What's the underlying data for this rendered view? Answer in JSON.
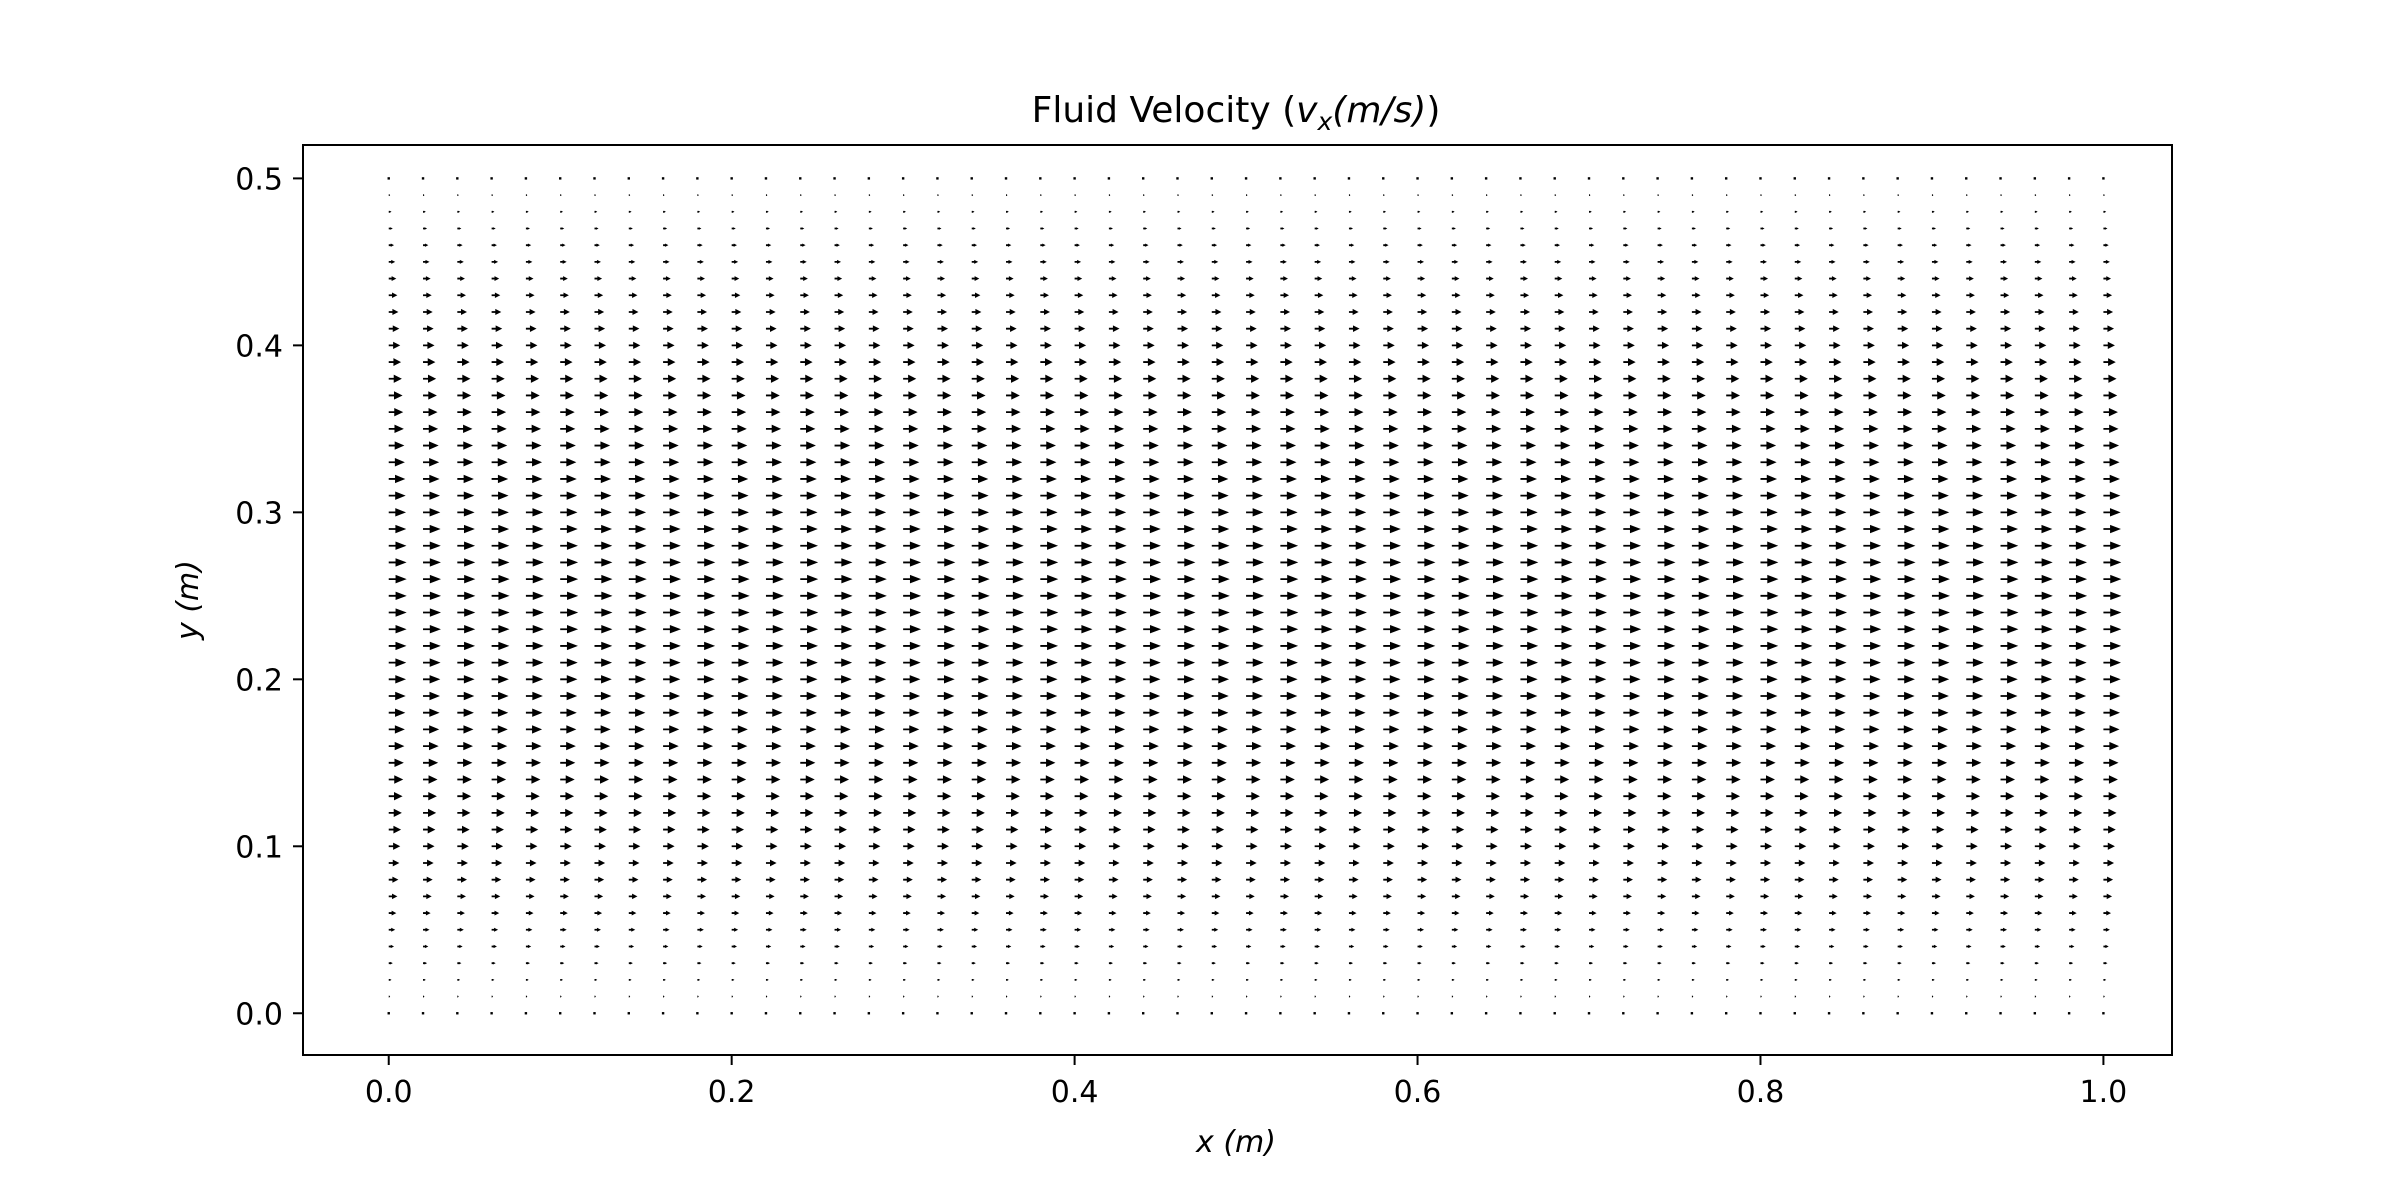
{
  "chart_data": {
    "type": "quiver",
    "title_main": "Fluid Velocity (",
    "title_var": "v",
    "title_sub": "x",
    "title_unit": "(m/s)",
    "title_close": ")",
    "xlabel_var": "x",
    "xlabel_unit": " (m)",
    "ylabel_var": "y",
    "ylabel_unit": " (m)",
    "xlim": [
      -0.05,
      1.04
    ],
    "ylim": [
      -0.025,
      0.52
    ],
    "x_ticks": [
      "0.0",
      "0.2",
      "0.4",
      "0.6",
      "0.8",
      "1.0"
    ],
    "x_tick_values": [
      0.0,
      0.2,
      0.4,
      0.6,
      0.8,
      1.0
    ],
    "y_ticks": [
      "0.0",
      "0.1",
      "0.2",
      "0.3",
      "0.4",
      "0.5"
    ],
    "y_tick_values": [
      0.0,
      0.1,
      0.2,
      0.3,
      0.4,
      0.5
    ],
    "grid": false,
    "x_range": [
      0.0,
      1.0
    ],
    "y_range": [
      0.0,
      0.5
    ],
    "nx": 51,
    "ny": 51,
    "field": "parabolic channel profile in x (vx = 4*vmax*(y/H)*(1-y/H)), vy = 0",
    "arrow_color": "#000000",
    "frame_color": "#000000"
  }
}
